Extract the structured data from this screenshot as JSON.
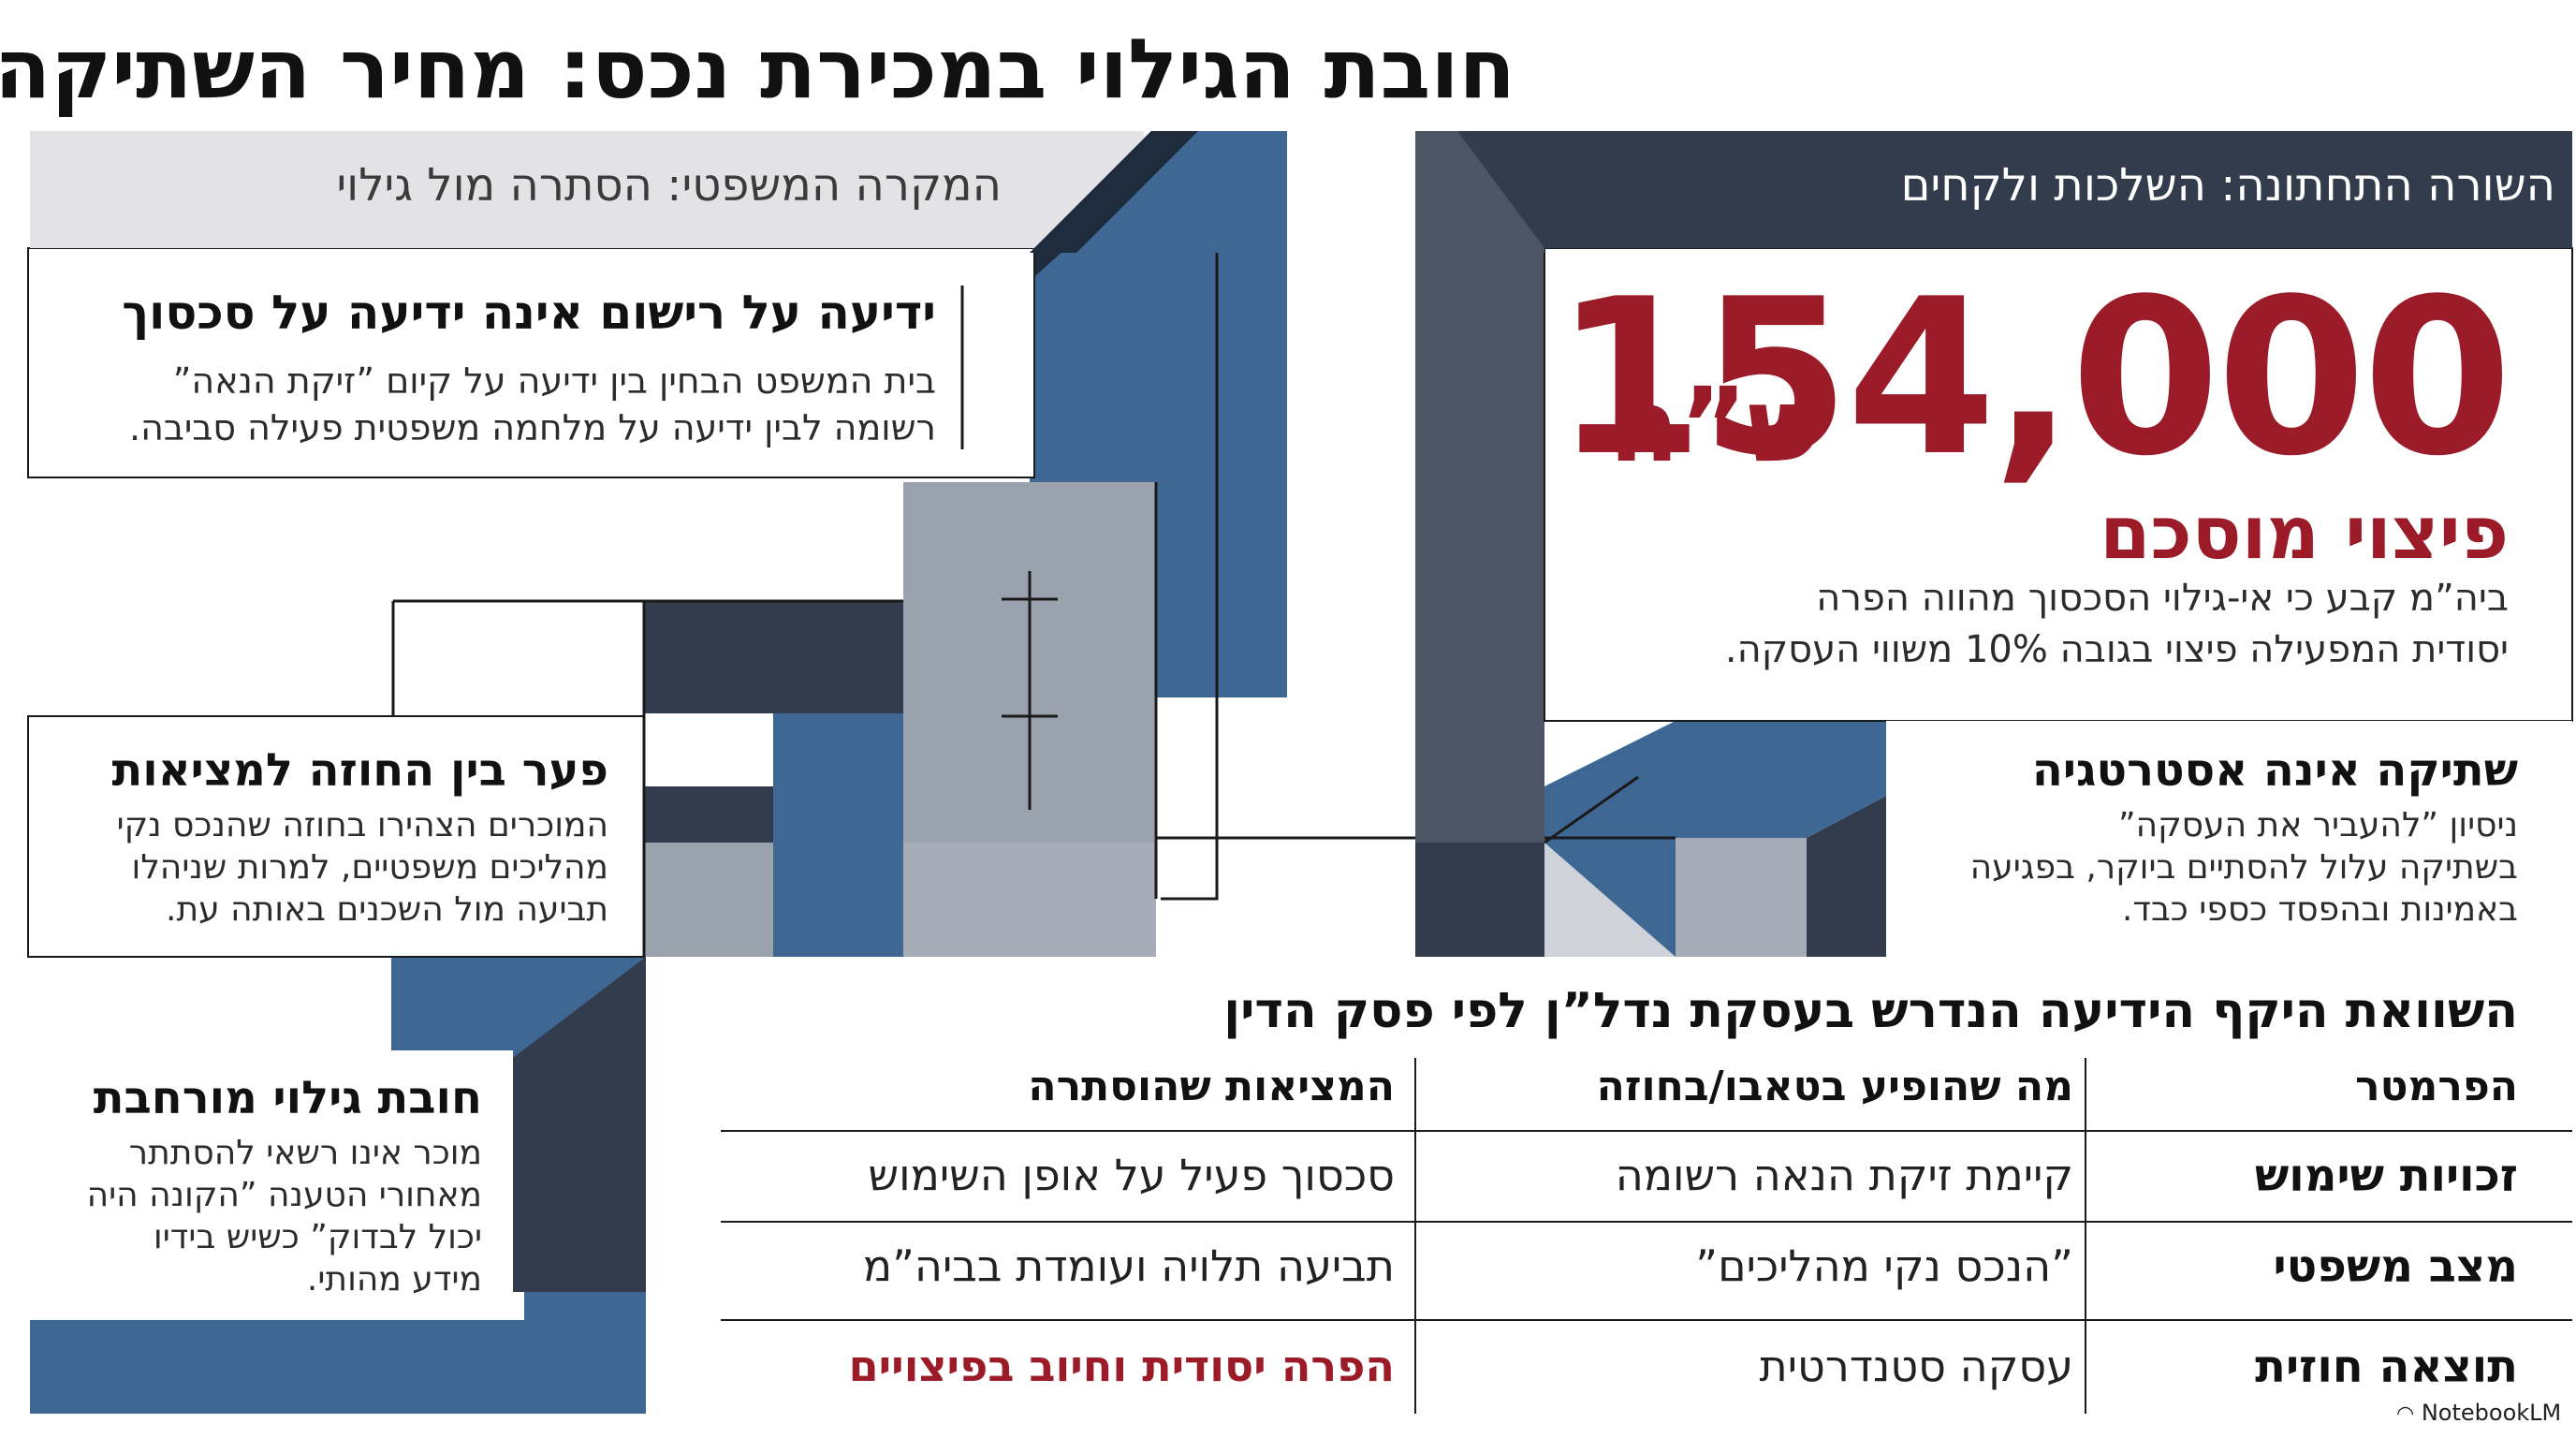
{
  "page": {
    "title": "חובת הגילוי במכירת נכס: מחיר השתיקה",
    "footer_brand": "NotebookLM"
  },
  "left_header": "המקרה המשפטי: הסתרה מול גילוי",
  "right_header": "השורה התחתונה: השלכות ולקחים",
  "sections": {
    "knowledge": {
      "heading": "ידיעה על רישום אינה ידיעה על סכסוך",
      "body_line1": "בית המשפט הבחין בין ידיעה על קיום ”זיקת הנאה”",
      "body_line2": "רשומה לבין ידיעה על מלחמה משפטית פעילה סביבה."
    },
    "gap": {
      "heading": "פער בין החוזה למציאות",
      "body_line1": "המוכרים הצהירו בחוזה שהנכס נקי",
      "body_line2": "מהליכים משפטיים, למרות שניהלו",
      "body_line3": "תביעה מול השכנים באותה עת."
    },
    "duty": {
      "heading": "חובת גילוי מורחבת",
      "body_line1": "מוכר אינו רשאי להסתתר",
      "body_line2": "מאחורי הטענה ”הקונה היה",
      "body_line3": "יכול לבדוק” כשיש בידיו",
      "body_line4": "מידע מהותי."
    },
    "silence": {
      "heading": "שתיקה אינה אסטרטגיה",
      "body_line1": "ניסיון ”להעביר את העסקה”",
      "body_line2": "בשתיקה עלול להסתיים ביוקר, בפגיעה",
      "body_line3": "באמינות ובהפסד כספי כבד."
    }
  },
  "compensation": {
    "amount": "154,000",
    "currency": "ש”ח",
    "label": "פיצוי מוסכם",
    "body_line1": "ביה”מ קבע כי אי-גילוי הסכסוך מהווה הפרה",
    "body_line2": "יסודית המפעילה פיצוי בגובה 10% משווי העסקה."
  },
  "table": {
    "title": "השוואת היקף הידיעה הנדרש בעסקת נדל”ן לפי פסק הדין",
    "headers": [
      "הפרמטר",
      "מה שהופיע בטאבו/בחוזה",
      "המציאות שהוסתרה"
    ],
    "rows": [
      [
        "זכויות שימוש",
        "קיימת זיקת הנאה רשומה",
        "סכסוך פעיל על אופן השימוש"
      ],
      [
        "מצב משפטי",
        "”הנכס נקי מהליכים”",
        "תביעה תלויה ועומדת בביה”מ"
      ],
      [
        "תוצאה חוזית",
        "עסקה סטנדרטית",
        "הפרה יסודית וחיוב בפיצויים"
      ]
    ]
  },
  "colors": {
    "dark_slate": "#333c4c",
    "steel_blue": "#3f6794",
    "mid_slate": "#4d5564",
    "light_gray": "#9aa2ad",
    "accent_red": "#9b1b28",
    "header_gray": "#e3e3e6"
  }
}
